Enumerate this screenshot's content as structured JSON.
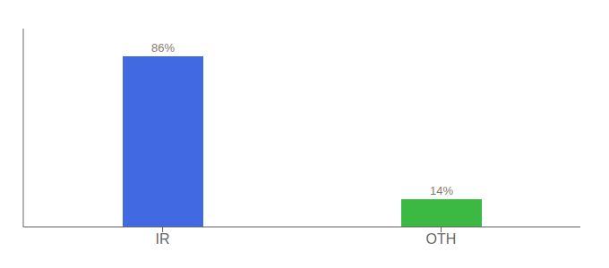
{
  "chart_data": {
    "type": "bar",
    "categories": [
      "IR",
      "OTH"
    ],
    "values": [
      86,
      14
    ],
    "value_labels": [
      "86%",
      "14%"
    ],
    "colors": [
      "#4169E1",
      "#3CB943"
    ],
    "ylim": [
      0,
      100
    ],
    "grid": false,
    "data_labels": true,
    "tick_labels": "x"
  }
}
